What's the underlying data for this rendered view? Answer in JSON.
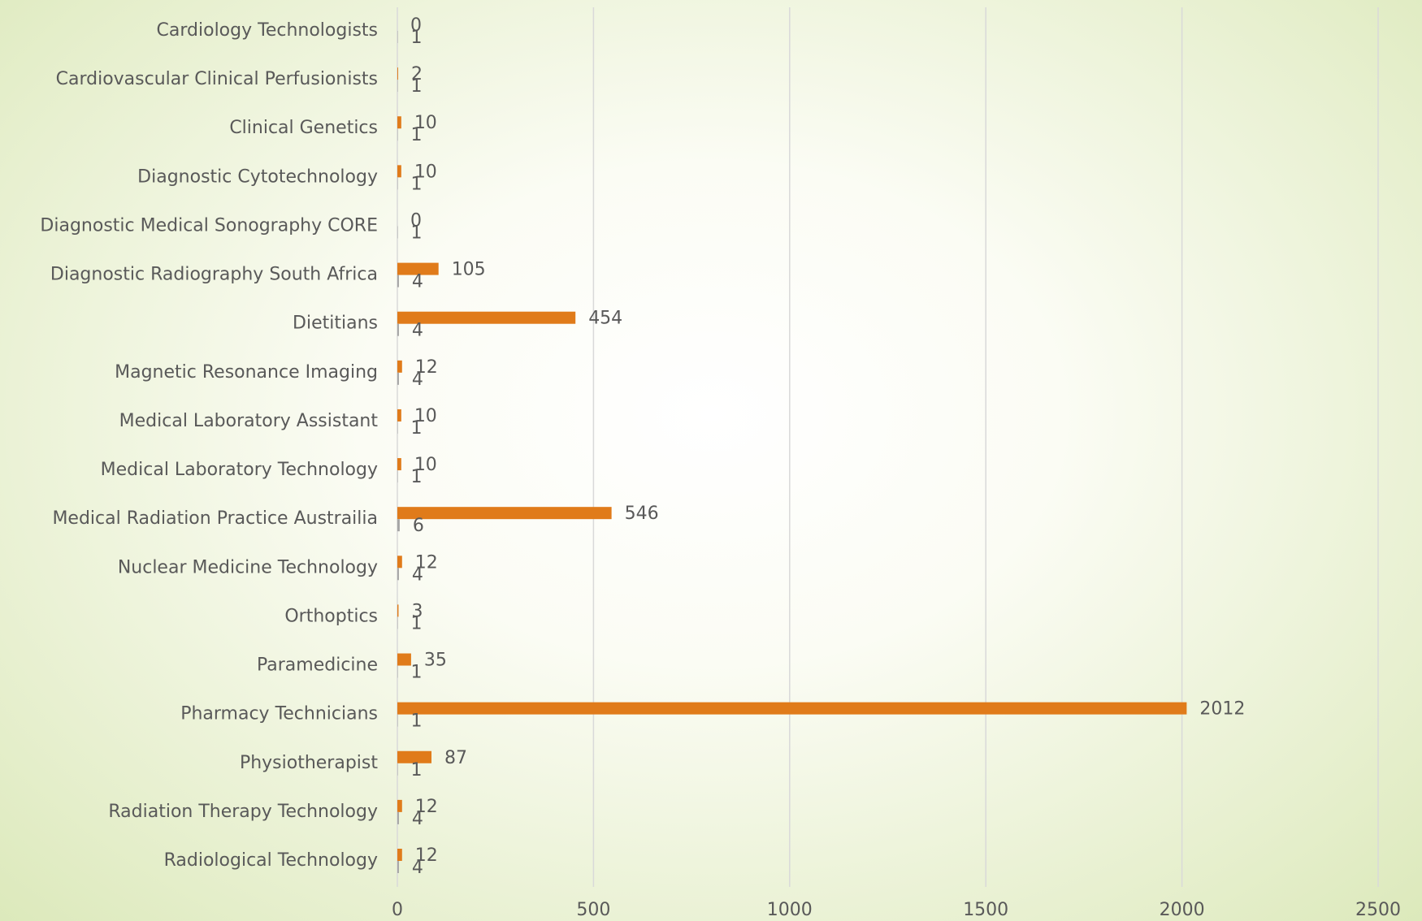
{
  "chart_data": {
    "type": "bar",
    "orientation": "horizontal",
    "categories": [
      "Cardiology Technologists",
      "Cardiovascular Clinical Perfusionists",
      "Clinical Genetics",
      "Diagnostic Cytotechnology",
      "Diagnostic Medical Sonography CORE",
      "Diagnostic Radiography South Africa",
      "Dietitians",
      "Magnetic Resonance Imaging",
      "Medical Laboratory Assistant",
      "Medical Laboratory Technology",
      "Medical Radiation Practice Austrailia",
      "Nuclear Medicine Technology",
      "Orthoptics",
      "Paramedicine",
      "Pharmacy Technicians",
      "Physiotherapist",
      "Radiation Therapy Technology",
      "Radiological Technology"
    ],
    "series": [
      {
        "color": "#e07b1a",
        "values": [
          0,
          2,
          10,
          10,
          0,
          105,
          454,
          12,
          10,
          10,
          546,
          12,
          3,
          35,
          2012,
          87,
          12,
          12
        ]
      },
      {
        "color": "#a5a5a5",
        "values": [
          1,
          1,
          1,
          1,
          1,
          4,
          4,
          4,
          1,
          1,
          6,
          4,
          1,
          1,
          1,
          1,
          4,
          4
        ]
      }
    ],
    "xlim": [
      0,
      2500
    ],
    "xticks": [
      0,
      500,
      1000,
      1500,
      2000,
      2500
    ],
    "grid": true
  }
}
